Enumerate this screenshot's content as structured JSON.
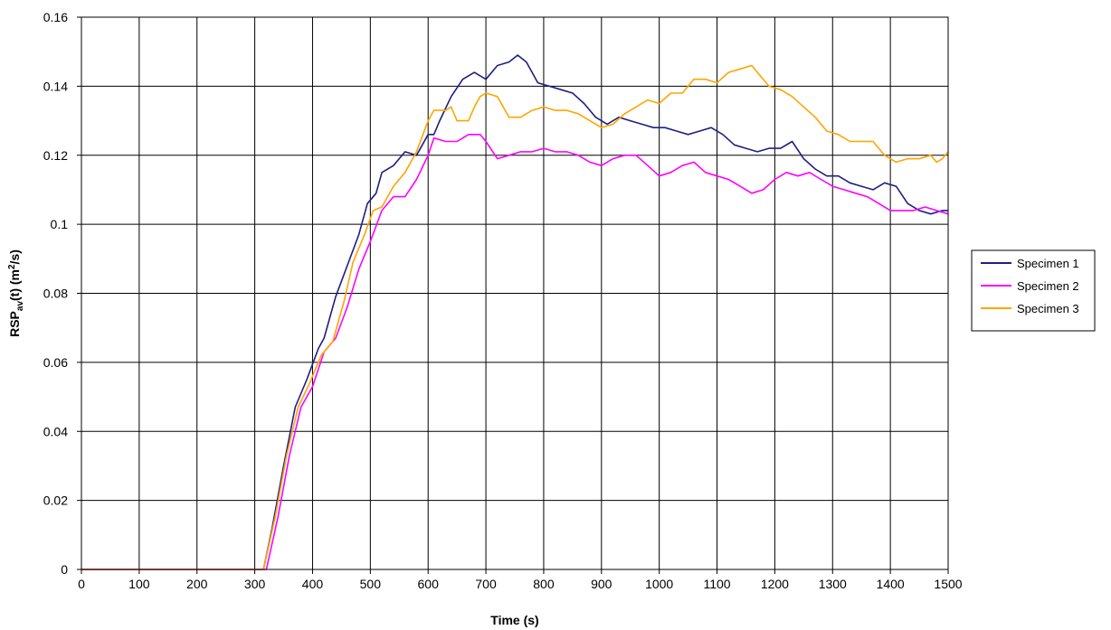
{
  "chart_data": {
    "type": "line",
    "title": "",
    "xlabel": "Time (s)",
    "ylabel_parts": {
      "main": "RSP",
      "sub": "av",
      "rest1": "(t) (m",
      "sup": "2",
      "rest2": "/s)"
    },
    "xlim": [
      0,
      1500
    ],
    "ylim": [
      0,
      0.16
    ],
    "x_ticks": [
      0,
      100,
      200,
      300,
      400,
      500,
      600,
      700,
      800,
      900,
      1000,
      1100,
      1200,
      1300,
      1400,
      1500
    ],
    "y_ticks": [
      0,
      0.02,
      0.04,
      0.06,
      0.08,
      0.1,
      0.12,
      0.14,
      0.16
    ],
    "x_tick_labels": [
      "0",
      "100",
      "200",
      "300",
      "400",
      "500",
      "600",
      "700",
      "800",
      "900",
      "1000",
      "1100",
      "1200",
      "1300",
      "1400",
      "1500"
    ],
    "y_tick_labels": [
      "0",
      "0.02",
      "0.04",
      "0.06",
      "0.08",
      "0.1",
      "0.12",
      "0.14",
      "0.16"
    ],
    "grid": true,
    "legend_position": "right",
    "series": [
      {
        "name": "Specimen 1",
        "color": "#1f1f80",
        "points": [
          [
            0,
            0
          ],
          [
            310,
            0
          ],
          [
            315,
            0
          ],
          [
            330,
            0.012
          ],
          [
            350,
            0.03
          ],
          [
            370,
            0.047
          ],
          [
            390,
            0.055
          ],
          [
            410,
            0.064
          ],
          [
            420,
            0.067
          ],
          [
            440,
            0.079
          ],
          [
            460,
            0.088
          ],
          [
            480,
            0.097
          ],
          [
            495,
            0.106
          ],
          [
            510,
            0.109
          ],
          [
            520,
            0.115
          ],
          [
            540,
            0.117
          ],
          [
            560,
            0.121
          ],
          [
            580,
            0.12
          ],
          [
            600,
            0.126
          ],
          [
            610,
            0.126
          ],
          [
            620,
            0.13
          ],
          [
            640,
            0.137
          ],
          [
            660,
            0.142
          ],
          [
            680,
            0.144
          ],
          [
            700,
            0.142
          ],
          [
            720,
            0.146
          ],
          [
            740,
            0.147
          ],
          [
            755,
            0.149
          ],
          [
            770,
            0.147
          ],
          [
            790,
            0.141
          ],
          [
            810,
            0.14
          ],
          [
            830,
            0.139
          ],
          [
            850,
            0.138
          ],
          [
            870,
            0.135
          ],
          [
            890,
            0.131
          ],
          [
            910,
            0.129
          ],
          [
            930,
            0.131
          ],
          [
            950,
            0.13
          ],
          [
            970,
            0.129
          ],
          [
            990,
            0.128
          ],
          [
            1010,
            0.128
          ],
          [
            1030,
            0.127
          ],
          [
            1050,
            0.126
          ],
          [
            1070,
            0.127
          ],
          [
            1090,
            0.128
          ],
          [
            1110,
            0.126
          ],
          [
            1130,
            0.123
          ],
          [
            1150,
            0.122
          ],
          [
            1170,
            0.121
          ],
          [
            1190,
            0.122
          ],
          [
            1210,
            0.122
          ],
          [
            1230,
            0.124
          ],
          [
            1250,
            0.119
          ],
          [
            1270,
            0.116
          ],
          [
            1290,
            0.114
          ],
          [
            1310,
            0.114
          ],
          [
            1330,
            0.112
          ],
          [
            1350,
            0.111
          ],
          [
            1370,
            0.11
          ],
          [
            1390,
            0.112
          ],
          [
            1410,
            0.111
          ],
          [
            1430,
            0.106
          ],
          [
            1450,
            0.104
          ],
          [
            1470,
            0.103
          ],
          [
            1490,
            0.104
          ],
          [
            1500,
            0.104
          ]
        ]
      },
      {
        "name": "Specimen 2",
        "color": "#ff00ff",
        "points": [
          [
            0,
            0
          ],
          [
            315,
            0
          ],
          [
            320,
            0
          ],
          [
            340,
            0.015
          ],
          [
            360,
            0.033
          ],
          [
            380,
            0.047
          ],
          [
            400,
            0.053
          ],
          [
            420,
            0.063
          ],
          [
            440,
            0.067
          ],
          [
            460,
            0.076
          ],
          [
            480,
            0.087
          ],
          [
            500,
            0.095
          ],
          [
            520,
            0.104
          ],
          [
            540,
            0.108
          ],
          [
            560,
            0.108
          ],
          [
            580,
            0.113
          ],
          [
            600,
            0.12
          ],
          [
            610,
            0.125
          ],
          [
            630,
            0.124
          ],
          [
            650,
            0.124
          ],
          [
            670,
            0.126
          ],
          [
            690,
            0.126
          ],
          [
            700,
            0.124
          ],
          [
            720,
            0.119
          ],
          [
            740,
            0.12
          ],
          [
            760,
            0.121
          ],
          [
            780,
            0.121
          ],
          [
            800,
            0.122
          ],
          [
            820,
            0.121
          ],
          [
            840,
            0.121
          ],
          [
            860,
            0.12
          ],
          [
            880,
            0.118
          ],
          [
            900,
            0.117
          ],
          [
            920,
            0.119
          ],
          [
            940,
            0.12
          ],
          [
            960,
            0.12
          ],
          [
            980,
            0.117
          ],
          [
            1000,
            0.114
          ],
          [
            1020,
            0.115
          ],
          [
            1040,
            0.117
          ],
          [
            1060,
            0.118
          ],
          [
            1080,
            0.115
          ],
          [
            1100,
            0.114
          ],
          [
            1120,
            0.113
          ],
          [
            1140,
            0.111
          ],
          [
            1160,
            0.109
          ],
          [
            1180,
            0.11
          ],
          [
            1200,
            0.113
          ],
          [
            1220,
            0.115
          ],
          [
            1240,
            0.114
          ],
          [
            1260,
            0.115
          ],
          [
            1280,
            0.113
          ],
          [
            1300,
            0.111
          ],
          [
            1320,
            0.11
          ],
          [
            1340,
            0.109
          ],
          [
            1360,
            0.108
          ],
          [
            1380,
            0.106
          ],
          [
            1400,
            0.104
          ],
          [
            1420,
            0.104
          ],
          [
            1440,
            0.104
          ],
          [
            1460,
            0.105
          ],
          [
            1480,
            0.104
          ],
          [
            1500,
            0.103
          ]
        ]
      },
      {
        "name": "Specimen 3",
        "color": "#ffa500",
        "points": [
          [
            0,
            0
          ],
          [
            310,
            0
          ],
          [
            315,
            0
          ],
          [
            335,
            0.015
          ],
          [
            355,
            0.033
          ],
          [
            375,
            0.047
          ],
          [
            395,
            0.054
          ],
          [
            415,
            0.062
          ],
          [
            435,
            0.066
          ],
          [
            455,
            0.078
          ],
          [
            470,
            0.089
          ],
          [
            490,
            0.097
          ],
          [
            505,
            0.104
          ],
          [
            520,
            0.105
          ],
          [
            540,
            0.111
          ],
          [
            560,
            0.115
          ],
          [
            580,
            0.121
          ],
          [
            600,
            0.13
          ],
          [
            610,
            0.133
          ],
          [
            630,
            0.133
          ],
          [
            640,
            0.134
          ],
          [
            650,
            0.13
          ],
          [
            670,
            0.13
          ],
          [
            680,
            0.134
          ],
          [
            690,
            0.137
          ],
          [
            700,
            0.138
          ],
          [
            720,
            0.137
          ],
          [
            740,
            0.131
          ],
          [
            760,
            0.131
          ],
          [
            780,
            0.133
          ],
          [
            800,
            0.134
          ],
          [
            820,
            0.133
          ],
          [
            840,
            0.133
          ],
          [
            860,
            0.132
          ],
          [
            880,
            0.13
          ],
          [
            900,
            0.128
          ],
          [
            920,
            0.129
          ],
          [
            940,
            0.132
          ],
          [
            960,
            0.134
          ],
          [
            980,
            0.136
          ],
          [
            1000,
            0.135
          ],
          [
            1020,
            0.138
          ],
          [
            1040,
            0.138
          ],
          [
            1060,
            0.142
          ],
          [
            1080,
            0.142
          ],
          [
            1100,
            0.141
          ],
          [
            1120,
            0.144
          ],
          [
            1140,
            0.145
          ],
          [
            1160,
            0.146
          ],
          [
            1170,
            0.144
          ],
          [
            1190,
            0.14
          ],
          [
            1210,
            0.139
          ],
          [
            1230,
            0.137
          ],
          [
            1250,
            0.134
          ],
          [
            1270,
            0.131
          ],
          [
            1290,
            0.127
          ],
          [
            1310,
            0.126
          ],
          [
            1330,
            0.124
          ],
          [
            1350,
            0.124
          ],
          [
            1370,
            0.124
          ],
          [
            1390,
            0.12
          ],
          [
            1410,
            0.118
          ],
          [
            1430,
            0.119
          ],
          [
            1450,
            0.119
          ],
          [
            1470,
            0.12
          ],
          [
            1480,
            0.118
          ],
          [
            1490,
            0.119
          ],
          [
            1500,
            0.121
          ]
        ]
      }
    ]
  }
}
